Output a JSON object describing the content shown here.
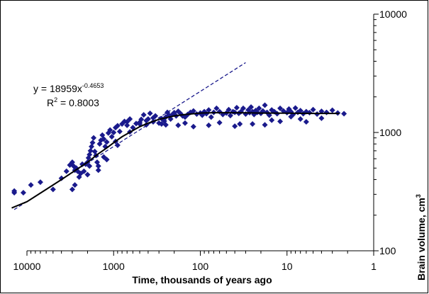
{
  "chart_data": {
    "type": "scatter",
    "title": "",
    "xlabel": "Time, thousands of years ago",
    "ylabel": "Brain volume, cm",
    "ylabel_sup": "3",
    "xscale": "log",
    "yscale": "log",
    "x_reversed": true,
    "xlim": [
      10000,
      1
    ],
    "ylim": [
      100,
      10000
    ],
    "x_ticks": [
      {
        "value": 10000,
        "label": "10000"
      },
      {
        "value": 1000,
        "label": "1000"
      },
      {
        "value": 100,
        "label": "100"
      },
      {
        "value": 10,
        "label": "10"
      },
      {
        "value": 1,
        "label": "1"
      }
    ],
    "y_ticks": [
      {
        "value": 10000,
        "label": "10000"
      },
      {
        "value": 1000,
        "label": "1000"
      },
      {
        "value": 100,
        "label": "100"
      }
    ],
    "y_axis_position": "right",
    "grid": false,
    "legend": "none",
    "marker_color": "#1a1a8c",
    "marker_shape": "diamond",
    "fit_curve_color": "#000000",
    "trend_line_color": "#1a1a8c",
    "equation": {
      "base": "y = 18959x",
      "exponent": "-0.4653",
      "r2_base": "R",
      "r2_sup": "2",
      "r2_value": " = 0.8003"
    },
    "trend_power": {
      "a": 18959,
      "b": -0.4653,
      "x_from": 14000,
      "x_to": 30
    },
    "fit_curve": {
      "x": [
        15000,
        10000,
        6000,
        4000,
        3000,
        2000,
        1500,
        1200,
        1000,
        800,
        600,
        500,
        400,
        300,
        250,
        200,
        150,
        100,
        70,
        50,
        30,
        20,
        10,
        5,
        2.5
      ],
      "y": [
        230,
        260,
        330,
        400,
        460,
        560,
        660,
        740,
        820,
        920,
        1040,
        1120,
        1200,
        1290,
        1330,
        1380,
        1420,
        1460,
        1470,
        1470,
        1465,
        1460,
        1455,
        1450,
        1450
      ]
    },
    "series": [
      {
        "x": [
          14000,
          14000,
          11000,
          9000,
          7000,
          5000,
          4000,
          3500,
          3200,
          3000,
          2900,
          2800,
          2700,
          2600,
          2500,
          2400,
          2300,
          2200,
          2100,
          2000,
          1950,
          1900,
          1850,
          1800,
          1750,
          1700,
          1650,
          1600,
          1550,
          1500,
          1450,
          1400,
          1350,
          1300,
          1250,
          1200,
          1150,
          1100,
          1050,
          1000,
          950,
          900,
          850,
          800,
          750,
          700,
          650,
          600,
          550,
          500,
          480,
          450,
          420,
          400,
          380,
          350,
          330,
          300,
          280,
          260,
          250,
          240,
          230,
          220,
          210,
          200,
          190,
          180,
          170,
          160,
          150,
          140,
          130,
          120,
          110,
          100,
          95,
          90,
          85,
          80,
          75,
          70,
          65,
          60,
          55,
          50,
          47,
          45,
          42,
          40,
          38,
          36,
          34,
          32,
          30,
          28,
          27,
          26,
          25,
          24,
          23,
          22,
          21,
          20,
          19,
          18,
          17,
          16,
          15,
          14,
          13,
          12,
          11,
          10,
          9.5,
          9,
          8.5,
          8,
          7.5,
          7,
          6.5,
          6,
          5.5,
          5,
          4.5,
          4,
          3.5,
          3,
          2.6,
          2.2,
          3000,
          2000,
          1500,
          1200,
          900,
          700,
          500,
          350,
          250,
          150,
          80,
          40,
          25,
          15,
          9,
          6,
          4,
          2800,
          1900,
          1300,
          950,
          650,
          420,
          280,
          180,
          120,
          60,
          35,
          18,
          12,
          7
        ],
        "y": [
          310,
          320,
          310,
          360,
          380,
          330,
          410,
          470,
          530,
          560,
          520,
          480,
          500,
          470,
          420,
          450,
          540,
          470,
          540,
          560,
          610,
          650,
          700,
          760,
          820,
          900,
          690,
          640,
          560,
          520,
          800,
          860,
          950,
          880,
          760,
          830,
          990,
          1050,
          920,
          1000,
          1100,
          1140,
          1020,
          1180,
          1240,
          1230,
          1300,
          1100,
          1190,
          1220,
          1290,
          1410,
          1260,
          1300,
          1450,
          1330,
          1380,
          1200,
          1310,
          1250,
          1350,
          1480,
          1400,
          1300,
          1420,
          1470,
          1380,
          1510,
          1450,
          1380,
          1350,
          1420,
          1480,
          1520,
          1430,
          1460,
          1400,
          1500,
          1440,
          1550,
          1350,
          1480,
          1600,
          1500,
          1420,
          1460,
          1560,
          1390,
          1500,
          1480,
          1620,
          1450,
          1500,
          1600,
          1430,
          1550,
          1470,
          1640,
          1500,
          1420,
          1530,
          1480,
          1600,
          1450,
          1520,
          1700,
          1480,
          1400,
          1550,
          1500,
          1440,
          1600,
          1520,
          1470,
          1580,
          1500,
          1420,
          1610,
          1480,
          1530,
          1440,
          1500,
          1470,
          1560,
          1430,
          1510,
          1480,
          1540,
          1460,
          1440,
          330,
          440,
          480,
          590,
          780,
          1150,
          1180,
          1230,
          1160,
          1200,
          1150,
          1130,
          1180,
          1270,
          1360,
          1230,
          1320,
          360,
          520,
          620,
          840,
          1010,
          1160,
          1180,
          1150,
          1120,
          1210,
          1180,
          1160,
          1240,
          1300
        ]
      }
    ]
  }
}
